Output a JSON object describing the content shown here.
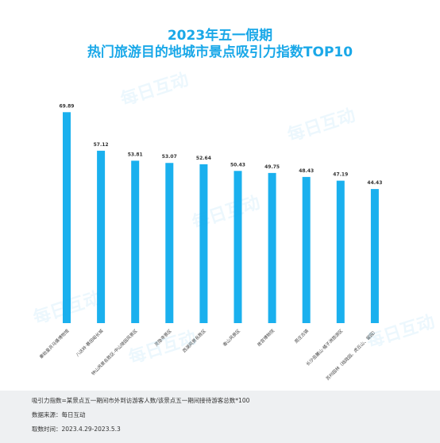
{
  "title": {
    "line1": "2023年五一假期",
    "line2": "热门旅游目的地城市景点吸引力指数TOP10"
  },
  "footer": {
    "formula": "吸引力指数=某景点五一期间市外到访游客人数/该景点五一期间接待游客总数*100",
    "source": "数据来源：每日互动",
    "period": "取数时间：2023.4.29-2023.5.3"
  },
  "watermark_text": "每日互动",
  "colors": {
    "bar": "#1ab0ee",
    "title": "#1aa8e8"
  },
  "chart_data": {
    "type": "bar",
    "categories": [
      "秦始皇兵马俑博物馆",
      "八达岭·慕田峪长城",
      "钟山风景名胜区-中山陵园风景区",
      "灵隐寺景区",
      "西湖风景名胜区",
      "泰山风景区",
      "故宫博物院",
      "周庄古镇",
      "长沙岳麓山·橘子洲旅游区",
      "苏州园林（拙政园、虎丘山、留园）"
    ],
    "values": [
      69.89,
      57.12,
      53.81,
      53.07,
      52.64,
      50.43,
      49.75,
      48.43,
      47.19,
      44.43
    ],
    "ylim": [
      0,
      75
    ],
    "grid": false
  }
}
